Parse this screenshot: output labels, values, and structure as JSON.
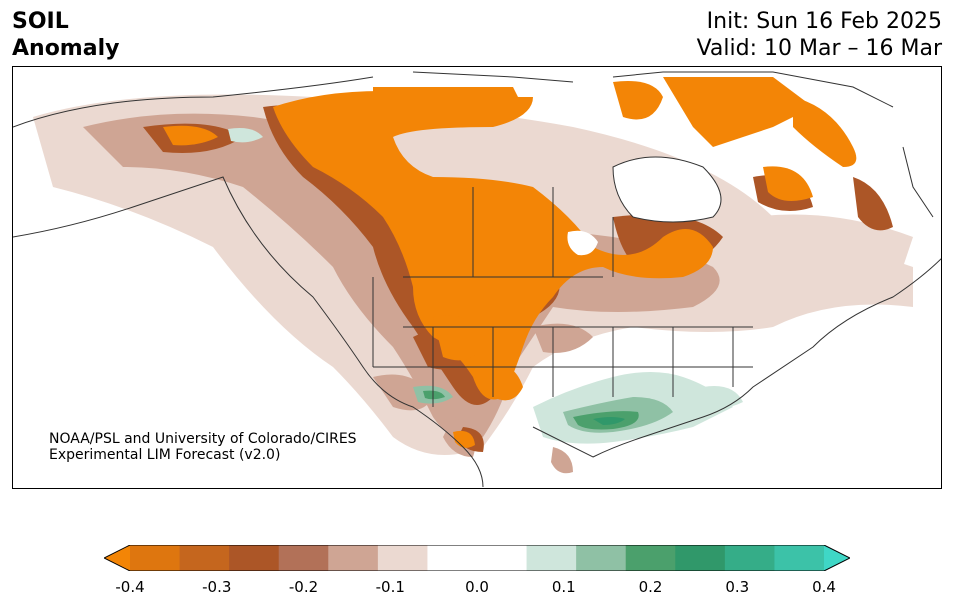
{
  "header": {
    "variable": "SOIL",
    "subtitle": "Anomaly",
    "init": "Init: Sun 16 Feb 2025",
    "valid": "Valid: 10 Mar – 16 Mar"
  },
  "credit": {
    "line1": "NOAA/PSL and University of Colorado/CIRES",
    "line2": "Experimental LIM Forecast (v2.0)"
  },
  "colorbar": {
    "colors": [
      "#f38506",
      "#de760f",
      "#c5661e",
      "#ac5627",
      "#b27158",
      "#cfa594",
      "#ebd9d1",
      "#ffffff",
      "#ffffff",
      "#cfe6dc",
      "#8fc1a5",
      "#4ba06c",
      "#30986a",
      "#35ad88",
      "#3cc2a8",
      "#3fd7c6"
    ],
    "ticks": [
      "-0.4",
      "-0.3",
      "-0.2",
      "-0.1",
      "0.0",
      "0.1",
      "0.2",
      "0.3",
      "0.4"
    ]
  },
  "palette": {
    "strong_dry": "#f38506",
    "dry": "#de760f",
    "mid_dry": "#c5661e",
    "brown": "#ac5627",
    "light_brown": "#b27158",
    "tan": "#cfa594",
    "pale": "#ebd9d1",
    "pale_green": "#cfe6dc",
    "light_green": "#8fc1a5",
    "green": "#4ba06c",
    "dark_green": "#30986a"
  }
}
